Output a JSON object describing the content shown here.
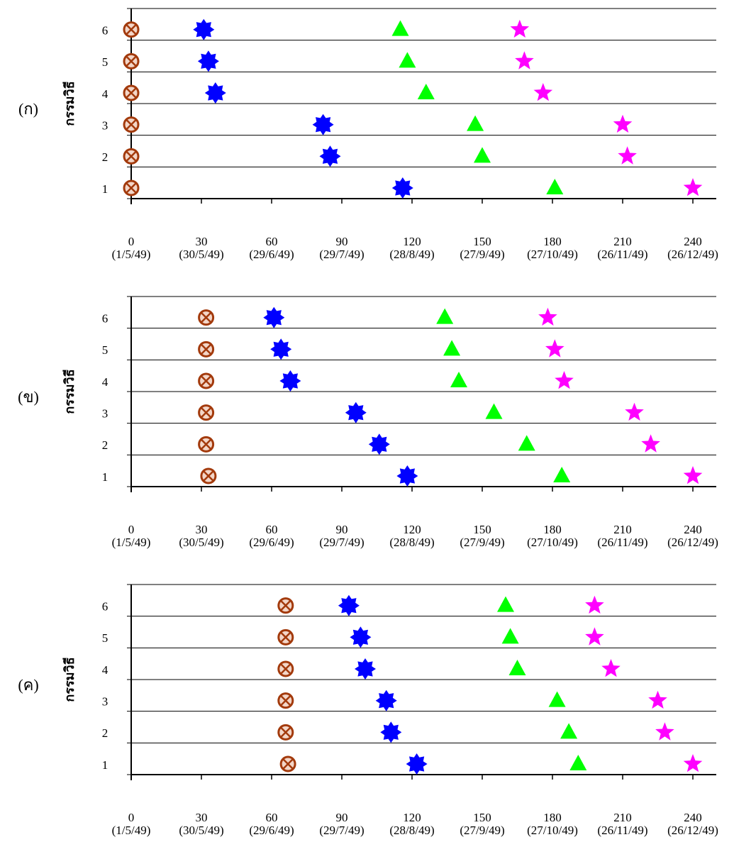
{
  "chart_data": [
    {
      "type": "timeline",
      "label": "(ก)",
      "ylabel": "กรรมวิธี",
      "categories": [
        "1",
        "2",
        "3",
        "4",
        "5",
        "6"
      ],
      "xlim": [
        0,
        240
      ],
      "xticks": [
        0,
        30,
        60,
        90,
        120,
        150,
        180,
        210,
        240
      ],
      "xtick_dates": [
        "(1/5/49)",
        "(30/5/49)",
        "(29/6/49)",
        "(29/7/49)",
        "(28/8/49)",
        "(27/9/49)",
        "(27/10/49)",
        "(26/11/49)",
        "(26/12/49)"
      ],
      "series": [
        {
          "marker": "circle-x",
          "color": "#a33a0c",
          "values": [
            0,
            0,
            0,
            0,
            0,
            0
          ]
        },
        {
          "marker": "star8",
          "color": "#0000ff",
          "values": [
            116,
            85,
            82,
            36,
            33,
            31
          ]
        },
        {
          "marker": "triangle",
          "color": "#00ff00",
          "values": [
            181,
            150,
            147,
            126,
            118,
            115
          ]
        },
        {
          "marker": "star5",
          "color": "#ff00ff",
          "values": [
            240,
            212,
            210,
            176,
            168,
            166
          ]
        }
      ]
    },
    {
      "type": "timeline",
      "label": "(ข)",
      "ylabel": "กรรมวิธี",
      "categories": [
        "1",
        "2",
        "3",
        "4",
        "5",
        "6"
      ],
      "xlim": [
        0,
        240
      ],
      "xticks": [
        0,
        30,
        60,
        90,
        120,
        150,
        180,
        210,
        240
      ],
      "xtick_dates": [
        "(1/5/49)",
        "(30/5/49)",
        "(29/6/49)",
        "(29/7/49)",
        "(28/8/49)",
        "(27/9/49)",
        "(27/10/49)",
        "(26/11/49)",
        "(26/12/49)"
      ],
      "series": [
        {
          "marker": "circle-x",
          "color": "#a33a0c",
          "values": [
            33,
            32,
            32,
            32,
            32,
            32
          ]
        },
        {
          "marker": "star8",
          "color": "#0000ff",
          "values": [
            118,
            106,
            96,
            68,
            64,
            61
          ]
        },
        {
          "marker": "triangle",
          "color": "#00ff00",
          "values": [
            184,
            169,
            155,
            140,
            137,
            134
          ]
        },
        {
          "marker": "star5",
          "color": "#ff00ff",
          "values": [
            240,
            222,
            215,
            185,
            181,
            178
          ]
        }
      ]
    },
    {
      "type": "timeline",
      "label": "(ค)",
      "ylabel": "กรรมวิธี",
      "categories": [
        "1",
        "2",
        "3",
        "4",
        "5",
        "6"
      ],
      "xlim": [
        0,
        240
      ],
      "xticks": [
        0,
        30,
        60,
        90,
        120,
        150,
        180,
        210,
        240
      ],
      "xtick_dates": [
        "(1/5/49)",
        "(30/5/49)",
        "(29/6/49)",
        "(29/7/49)",
        "(28/8/49)",
        "(27/9/49)",
        "(27/10/49)",
        "(26/11/49)",
        "(26/12/49)"
      ],
      "series": [
        {
          "marker": "circle-x",
          "color": "#a33a0c",
          "values": [
            67,
            66,
            66,
            66,
            66,
            66
          ]
        },
        {
          "marker": "star8",
          "color": "#0000ff",
          "values": [
            122,
            111,
            109,
            100,
            98,
            93
          ]
        },
        {
          "marker": "triangle",
          "color": "#00ff00",
          "values": [
            191,
            187,
            182,
            165,
            162,
            160
          ]
        },
        {
          "marker": "star5",
          "color": "#ff00ff",
          "values": [
            240,
            228,
            225,
            205,
            198,
            198
          ]
        }
      ]
    }
  ]
}
